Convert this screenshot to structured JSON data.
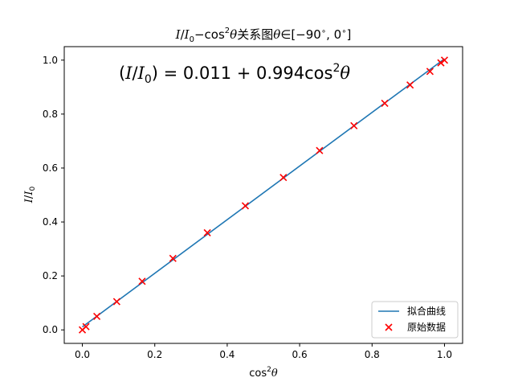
{
  "chart_data": {
    "type": "line",
    "title": "I/I₀–cos²θ关系图θ∈[−90°, 0°]",
    "xlabel": "cos²θ",
    "ylabel": "I/I₀",
    "annotation": "(I/I₀) = 0.011 + 0.994cos²θ",
    "xlim": [
      -0.05,
      1.05
    ],
    "ylim": [
      -0.05,
      1.05
    ],
    "xticks": [
      0.0,
      0.2,
      0.4,
      0.6,
      0.8,
      1.0
    ],
    "yticks": [
      0.0,
      0.2,
      0.4,
      0.6,
      0.8,
      1.0
    ],
    "xtick_labels": [
      "0.0",
      "0.2",
      "0.4",
      "0.6",
      "0.8",
      "1.0"
    ],
    "ytick_labels": [
      "0.0",
      "0.2",
      "0.4",
      "0.6",
      "0.8",
      "1.0"
    ],
    "grid": false,
    "legend_position": "lower-right",
    "series": [
      {
        "name": "拟合曲线",
        "kind": "line",
        "color": "#1f77b4",
        "x": [
          0.0,
          1.0
        ],
        "y": [
          0.011,
          1.005
        ]
      },
      {
        "name": "原始数据",
        "kind": "scatter",
        "marker": "x",
        "color": "#ff0000",
        "x": [
          0.0,
          0.01,
          0.04,
          0.095,
          0.165,
          0.25,
          0.345,
          0.45,
          0.555,
          0.655,
          0.75,
          0.835,
          0.905,
          0.96,
          0.99,
          1.0
        ],
        "y": [
          0.0,
          0.012,
          0.05,
          0.105,
          0.18,
          0.265,
          0.36,
          0.46,
          0.565,
          0.665,
          0.757,
          0.84,
          0.908,
          0.958,
          0.99,
          1.0
        ]
      }
    ]
  }
}
